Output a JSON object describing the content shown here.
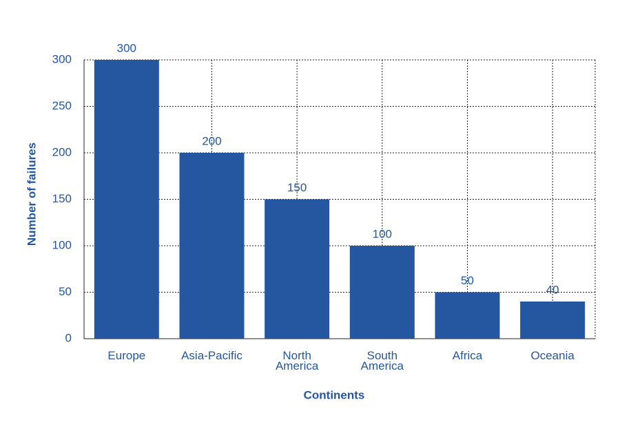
{
  "chart_data": {
    "type": "bar",
    "x_label": "Continents",
    "y_label": "Number of failures",
    "categories": [
      "Europe",
      "Asia-Pacific",
      "North\nAmerica",
      "South\nAmerica",
      "Africa",
      "Oceania"
    ],
    "values": [
      300,
      200,
      150,
      100,
      50,
      40
    ],
    "color": "#2457a0",
    "ylim": [
      0,
      300
    ],
    "yticks": [
      0,
      50,
      100,
      150,
      200,
      250,
      300
    ],
    "grid": true
  }
}
